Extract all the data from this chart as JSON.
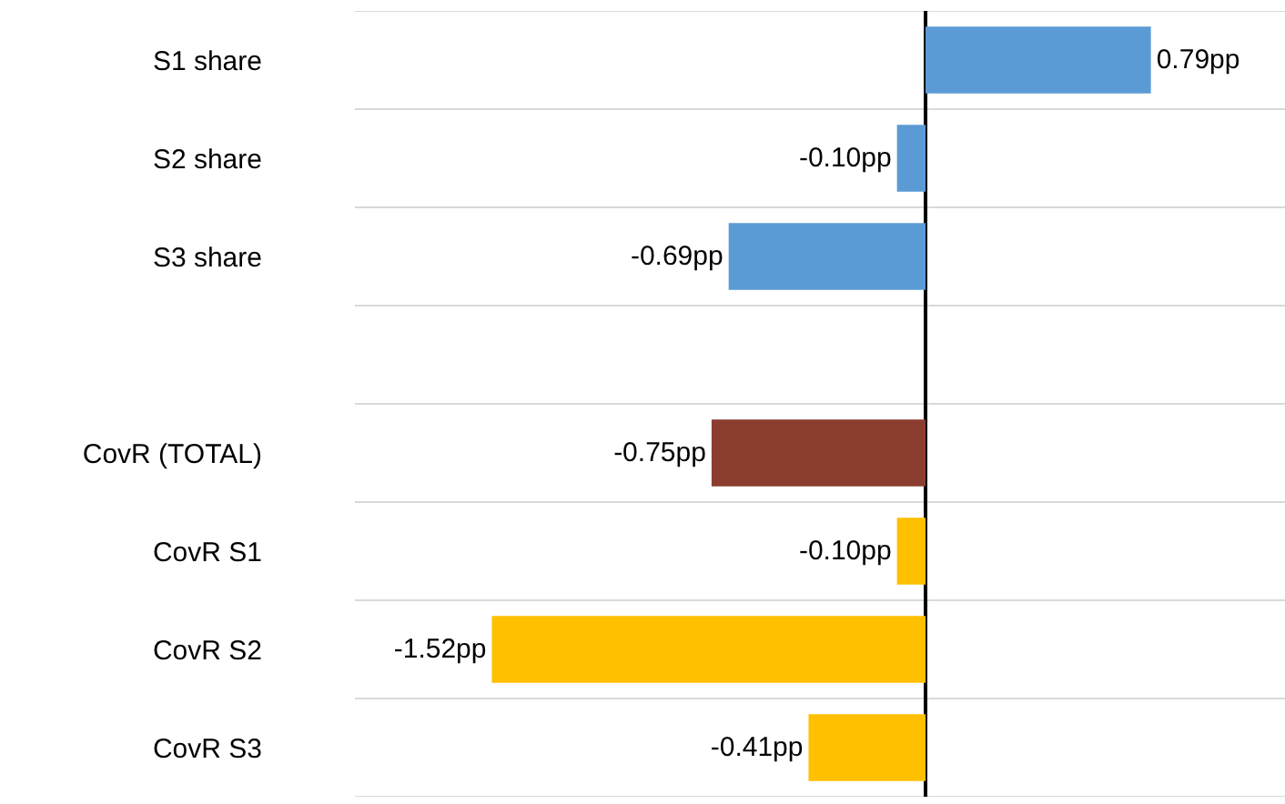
{
  "chart_data": {
    "type": "bar",
    "orientation": "horizontal",
    "categories": [
      "S1 share",
      "S2 share",
      "S3 share",
      null,
      "CovR (TOTAL)",
      "CovR S1",
      "CovR S2",
      "CovR S3"
    ],
    "values": [
      0.79,
      -0.1,
      -0.69,
      null,
      -0.75,
      -0.1,
      -1.52,
      -0.41
    ],
    "value_labels": [
      "0.79pp",
      "-0.10pp",
      "-0.69pp",
      null,
      "-0.75pp",
      "-0.10pp",
      "-1.52pp",
      "-0.41pp"
    ],
    "colors": [
      "#5b9bd5",
      "#5b9bd5",
      "#5b9bd5",
      "#5b9bd5",
      "#8b3e2f",
      "#ffc000",
      "#ffc000",
      "#ffc000"
    ],
    "xlim": [
      -2,
      1.26
    ],
    "grid": "y",
    "legend": false,
    "tick_labels": "y"
  }
}
